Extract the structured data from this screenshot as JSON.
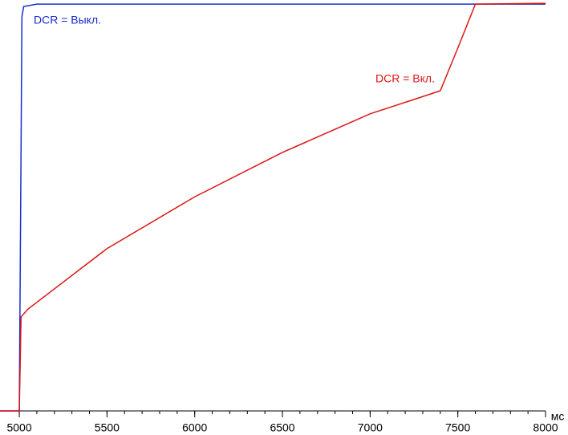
{
  "chart_data": {
    "type": "line",
    "x_label": "мс",
    "xlim": [
      4890,
      8000
    ],
    "ylim": [
      0,
      100
    ],
    "xticks": [
      5000,
      5500,
      6000,
      6500,
      7000,
      7500,
      8000
    ],
    "x_minor_ticks": [
      5000,
      5100,
      5200,
      5300,
      5400,
      5500,
      5600,
      5700,
      5800,
      5900,
      6000,
      6100,
      6200,
      6300,
      6400,
      6500,
      6600,
      6700,
      6800,
      6900,
      7000,
      7100,
      7200,
      7300,
      7400,
      7500,
      7600,
      7700,
      7800,
      7900,
      8000
    ],
    "annotations": [
      "DCR = Выкл.",
      "DCR = Вкл."
    ],
    "series": [
      {
        "name": "DCR = Выкл.",
        "color": "#1a2bd0",
        "x": [
          4890,
          5000,
          5008,
          5015,
          5025,
          5100,
          5500,
          6000,
          6500,
          7000,
          7500,
          8000
        ],
        "values": [
          0,
          0,
          51,
          96,
          98.4,
          99,
          99,
          99,
          99,
          99,
          99,
          99
        ]
      },
      {
        "name": "DCR = Вкл.",
        "color": "#dd1515",
        "x": [
          4890,
          5000,
          5005,
          5010,
          5050,
          5200,
          5500,
          6000,
          6500,
          7000,
          7400,
          7500,
          7600,
          8000
        ],
        "values": [
          0,
          0,
          11.1,
          22.9,
          24.8,
          29.7,
          39.5,
          52.1,
          62.9,
          72.3,
          77.9,
          88.3,
          99,
          99.2
        ]
      }
    ]
  }
}
